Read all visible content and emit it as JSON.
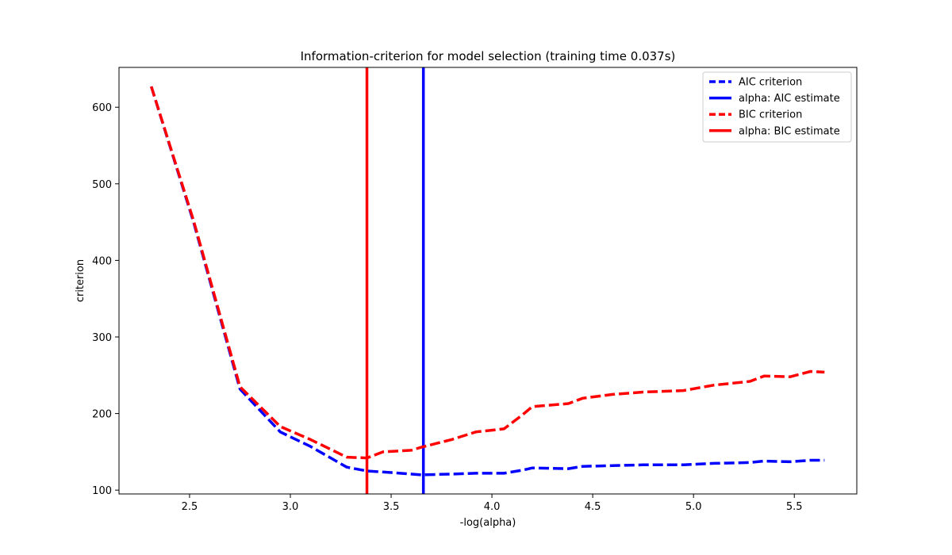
{
  "chart_data": {
    "type": "line",
    "title": "Information-criterion for model selection (training time 0.037s)",
    "xlabel": "-log(alpha)",
    "ylabel": "criterion",
    "xlim": [
      2.15,
      5.81
    ],
    "ylim": [
      95,
      652
    ],
    "xticks": [
      2.5,
      3.0,
      3.5,
      4.0,
      4.5,
      5.0,
      5.5
    ],
    "xtick_labels": [
      "2.5",
      "3.0",
      "3.5",
      "4.0",
      "4.5",
      "5.0",
      "5.5"
    ],
    "yticks": [
      100,
      200,
      300,
      400,
      500,
      600
    ],
    "ytick_labels": [
      "100",
      "200",
      "300",
      "400",
      "500",
      "600"
    ],
    "grid": false,
    "legend_position": "top-right",
    "series": [
      {
        "name": "AIC criterion",
        "color": "#0000ff",
        "style": "dashed",
        "x": [
          2.31,
          2.52,
          2.75,
          2.95,
          3.1,
          3.28,
          3.38,
          3.5,
          3.65,
          3.8,
          3.92,
          4.06,
          4.15,
          4.2,
          4.38,
          4.45,
          4.6,
          4.75,
          4.95,
          5.1,
          5.28,
          5.35,
          5.48,
          5.58,
          5.65
        ],
        "y": [
          627,
          450,
          232,
          176,
          157,
          130,
          125,
          123,
          120,
          121,
          122,
          122,
          126,
          129,
          128,
          131,
          132,
          133,
          133,
          135,
          136,
          138,
          137,
          139,
          139
        ]
      },
      {
        "name": "BIC criterion",
        "color": "#ff0000",
        "style": "dashed",
        "x": [
          2.31,
          2.52,
          2.75,
          2.95,
          3.1,
          3.28,
          3.38,
          3.46,
          3.6,
          3.65,
          3.8,
          3.92,
          4.06,
          4.15,
          4.2,
          4.38,
          4.45,
          4.6,
          4.75,
          4.95,
          5.1,
          5.28,
          5.35,
          5.48,
          5.58,
          5.65
        ],
        "y": [
          627,
          452,
          235,
          183,
          166,
          143,
          142,
          150,
          152,
          156,
          166,
          176,
          180,
          198,
          209,
          213,
          220,
          225,
          228,
          230,
          237,
          242,
          249,
          248,
          255,
          254
        ]
      },
      {
        "name": "alpha: AIC estimate",
        "color": "#0000ff",
        "style": "vline",
        "x_value": 3.66
      },
      {
        "name": "alpha: BIC estimate",
        "color": "#ff0000",
        "style": "vline",
        "x_value": 3.38
      }
    ],
    "legend_order": [
      "AIC criterion",
      "alpha: AIC estimate",
      "BIC criterion",
      "alpha: BIC estimate"
    ]
  }
}
